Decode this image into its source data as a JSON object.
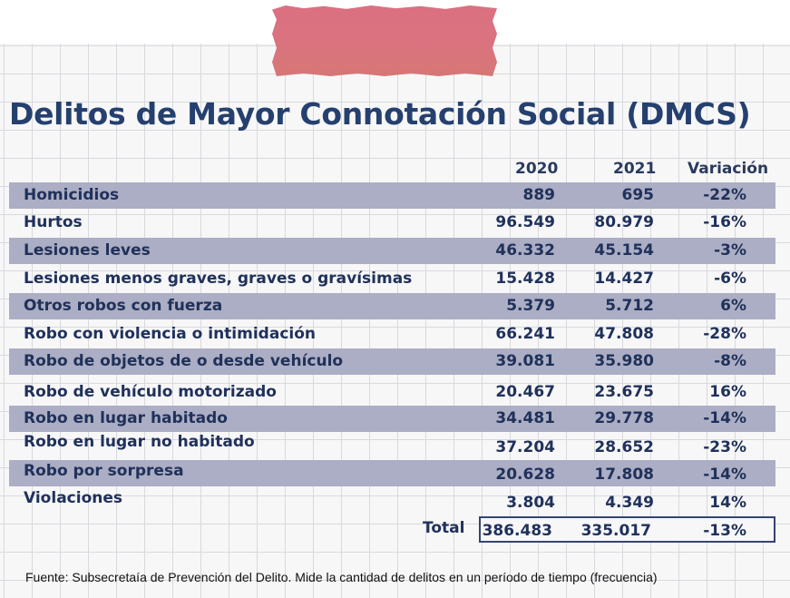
{
  "title": "Delitos de Mayor Connotación Social (DMCS)",
  "columns": {
    "year1": "2020",
    "year2": "2021",
    "variation": "Variación"
  },
  "rows": [
    {
      "label": "Homicidios",
      "v2020": "889",
      "v2021": "695",
      "variation": "-22%"
    },
    {
      "label": "Hurtos",
      "v2020": "96.549",
      "v2021": "80.979",
      "variation": "-16%"
    },
    {
      "label": "Lesiones leves",
      "v2020": "46.332",
      "v2021": "45.154",
      "variation": "-3%"
    },
    {
      "label": "Lesiones menos graves, graves o gravísimas",
      "v2020": "15.428",
      "v2021": "14.427",
      "variation": "-6%"
    },
    {
      "label": "Otros robos con fuerza",
      "v2020": "5.379",
      "v2021": "5.712",
      "variation": "6%"
    },
    {
      "label": "Robo con violencia o intimidación",
      "v2020": "66.241",
      "v2021": "47.808",
      "variation": "-28%"
    },
    {
      "label": "Robo de objetos de o desde vehículo",
      "v2020": "39.081",
      "v2021": "35.980",
      "variation": "-8%"
    },
    {
      "label": "Robo de vehículo motorizado",
      "v2020": "20.467",
      "v2021": "23.675",
      "variation": "16%"
    },
    {
      "label": "Robo en lugar habitado",
      "v2020": "34.481",
      "v2021": "29.778",
      "variation": "-14%"
    },
    {
      "label": "Robo en lugar no habitado",
      "v2020": "37.204",
      "v2021": "28.652",
      "variation": "-23%"
    },
    {
      "label": "Robo por sorpresa",
      "v2020": "20.628",
      "v2021": "17.808",
      "variation": "-14%"
    },
    {
      "label": "Violaciones",
      "v2020": "3.804",
      "v2021": "4.349",
      "variation": "14%"
    }
  ],
  "total": {
    "label": "Total",
    "v2020": "386.483",
    "v2021": "335.017",
    "variation": "-13%"
  },
  "source": "Fuente: Subsecretaía de Prevención del Delito. Mide la cantidad de delitos en un período de tiempo (frecuencia)",
  "colors": {
    "title": "#25406e",
    "row_shade": "#abaec4",
    "tape": "#d86c78",
    "text": "#20315a"
  }
}
